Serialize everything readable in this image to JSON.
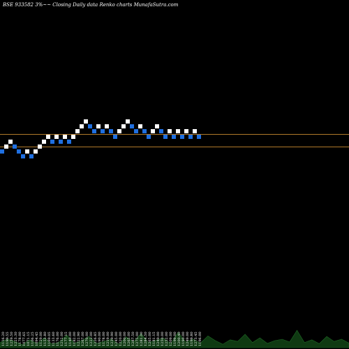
{
  "header": {
    "title": "BSE 933582  3%~~ Closing Daily data  Renko  charts MunafaSutra.com"
  },
  "chart_data": {
    "type": "renko",
    "title": "BSE 933582  3%~~ Closing Daily data  Renko  charts MunafaSutra.com",
    "brick_percent": 3,
    "up_color": "#ffffff",
    "down_color": "#1f6fe0",
    "reference_line_color": "#b07a2a",
    "reference_levels": [
      1292,
      1184
    ],
    "bricks": [
      {
        "dir": "down",
        "level": 1143
      },
      {
        "dir": "up",
        "level": 1184
      },
      {
        "dir": "up",
        "level": 1226
      },
      {
        "dir": "down",
        "level": 1184
      },
      {
        "dir": "down",
        "level": 1143
      },
      {
        "dir": "down",
        "level": 1104
      },
      {
        "dir": "up",
        "level": 1143
      },
      {
        "dir": "down",
        "level": 1104
      },
      {
        "dir": "up",
        "level": 1143
      },
      {
        "dir": "up",
        "level": 1184
      },
      {
        "dir": "up",
        "level": 1226
      },
      {
        "dir": "up",
        "level": 1270
      },
      {
        "dir": "down",
        "level": 1226
      },
      {
        "dir": "up",
        "level": 1270
      },
      {
        "dir": "down",
        "level": 1226
      },
      {
        "dir": "up",
        "level": 1270
      },
      {
        "dir": "down",
        "level": 1226
      },
      {
        "dir": "up",
        "level": 1270
      },
      {
        "dir": "up",
        "level": 1315
      },
      {
        "dir": "up",
        "level": 1362
      },
      {
        "dir": "up",
        "level": 1410
      },
      {
        "dir": "down",
        "level": 1362
      },
      {
        "dir": "down",
        "level": 1315
      },
      {
        "dir": "up",
        "level": 1362
      },
      {
        "dir": "down",
        "level": 1315
      },
      {
        "dir": "up",
        "level": 1362
      },
      {
        "dir": "down",
        "level": 1315
      },
      {
        "dir": "down",
        "level": 1270
      },
      {
        "dir": "up",
        "level": 1315
      },
      {
        "dir": "up",
        "level": 1362
      },
      {
        "dir": "up",
        "level": 1410
      },
      {
        "dir": "down",
        "level": 1362
      },
      {
        "dir": "down",
        "level": 1315
      },
      {
        "dir": "up",
        "level": 1362
      },
      {
        "dir": "down",
        "level": 1315
      },
      {
        "dir": "down",
        "level": 1270
      },
      {
        "dir": "up",
        "level": 1315
      },
      {
        "dir": "up",
        "level": 1362
      },
      {
        "dir": "down",
        "level": 1315
      },
      {
        "dir": "down",
        "level": 1270
      },
      {
        "dir": "up",
        "level": 1315
      },
      {
        "dir": "down",
        "level": 1270
      },
      {
        "dir": "up",
        "level": 1315
      },
      {
        "dir": "down",
        "level": 1270
      },
      {
        "dir": "up",
        "level": 1315
      },
      {
        "dir": "down",
        "level": 1270
      },
      {
        "dir": "up",
        "level": 1315
      },
      {
        "dir": "down",
        "level": 1270
      }
    ],
    "volume_labels": [
      "1116.20",
      "1199.55",
      "1259.50",
      "1223.30",
      "1178.00",
      "1077.65",
      "1071.15",
      "1106.25",
      "1094.45",
      "1129.00",
      "1153.80",
      "1169.05",
      "1133.60",
      "1176.00",
      "1212.00",
      "1177.15",
      "1140.00",
      "1182.00",
      "1222.90",
      "1267.00",
      "1270.00",
      "1222.00",
      "1226.85",
      "1190.00",
      "1178.00",
      "1219.00",
      "1239.90",
      "1245.00",
      "1220.00",
      "1200.00",
      "1265.00",
      "1287.50",
      "1275.00",
      "1281.00",
      "1284.50",
      "1265.00",
      "1181.15",
      "1249.00",
      "1250.00",
      "1252.00",
      "1209.00",
      "1199.00",
      "1200.40",
      "1190.00",
      "1249.00",
      "1199.80",
      "1273.45",
      "1196.00"
    ],
    "volume_heights": [
      0.18,
      0.3,
      0.22,
      0.1,
      0.28,
      0.14,
      0.35,
      0.12,
      0.2,
      0.45,
      0.16,
      0.25,
      0.4,
      0.15,
      0.22,
      0.3,
      0.12,
      0.38,
      0.2,
      0.5,
      0.18,
      0.26,
      0.34,
      0.14,
      0.55,
      0.2,
      0.3,
      0.16,
      0.42,
      0.25,
      0.12,
      0.28,
      0.22,
      0.48,
      0.18,
      0.35,
      0.15,
      0.25,
      0.3,
      0.2,
      0.62,
      0.18,
      0.28,
      0.14,
      0.4,
      0.22,
      0.3,
      0.16
    ]
  }
}
